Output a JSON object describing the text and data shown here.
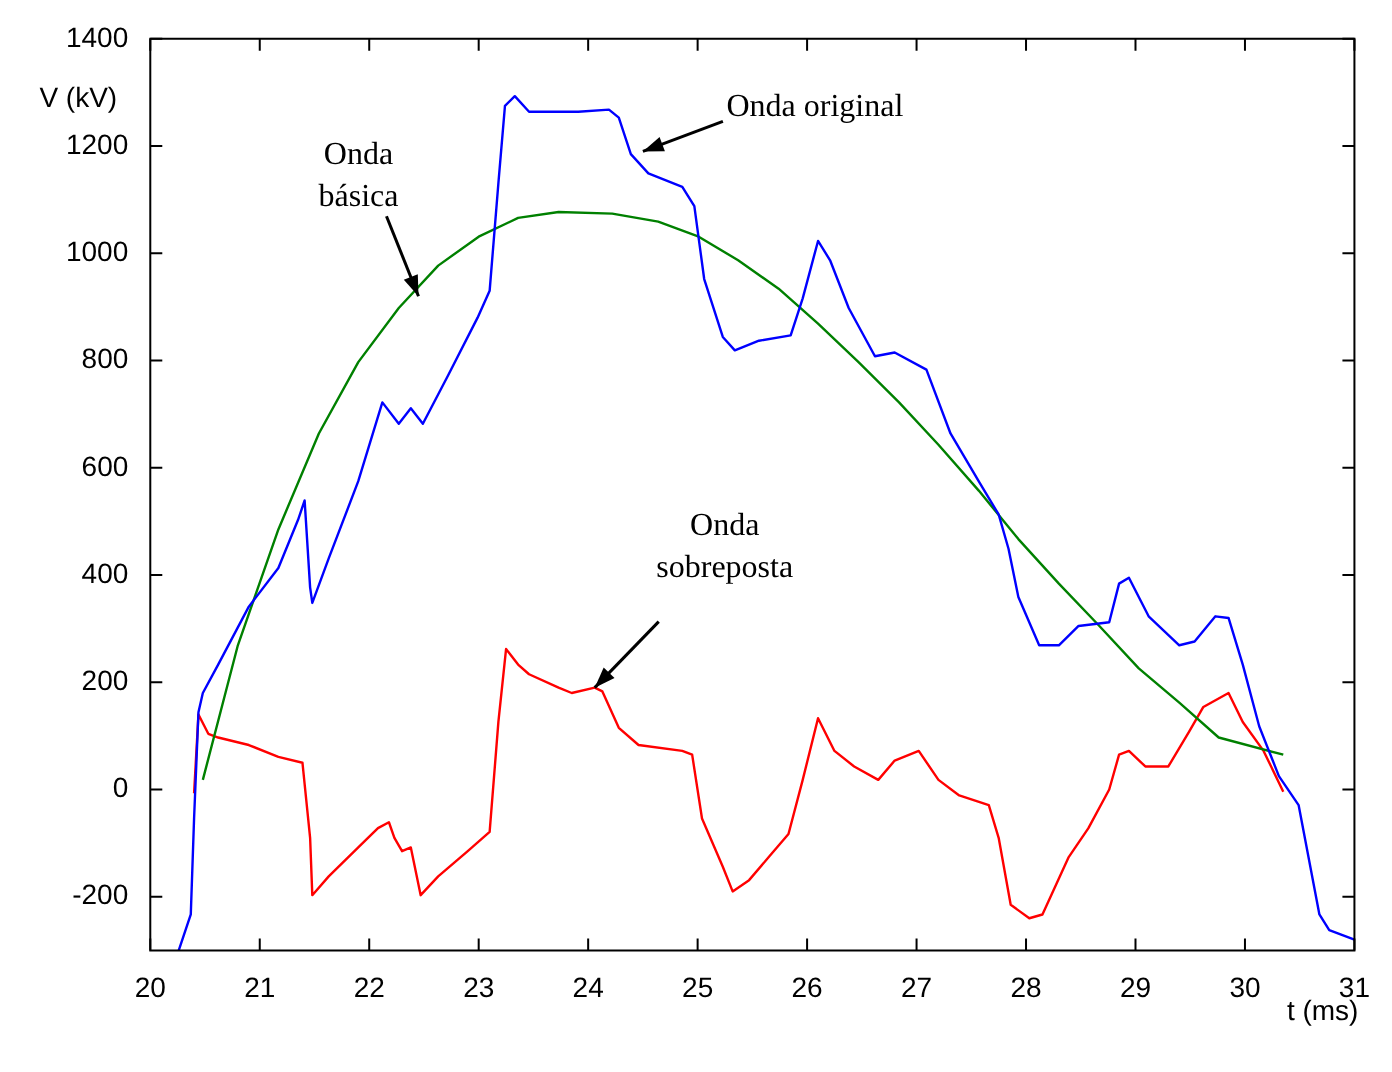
{
  "chart_data": {
    "type": "line",
    "xlabel": "t (ms)",
    "ylabel": "V (kV)",
    "xlim": [
      20,
      31
    ],
    "xticks": [
      20,
      21,
      22,
      23,
      24,
      25,
      26,
      27,
      28,
      29,
      30,
      31
    ],
    "ylim": [
      -300,
      1400
    ],
    "yticks": [
      -200,
      0,
      200,
      400,
      600,
      800,
      1000,
      1200,
      1400
    ],
    "grid": false,
    "legend": false,
    "marker": "none",
    "line_style": "solid",
    "series": [
      {
        "color": "#0000ff",
        "x": [
          20.26,
          20.37,
          20.4,
          20.44,
          20.48,
          20.62,
          20.9,
          21.17,
          21.35,
          21.41,
          21.46,
          21.48,
          21.63,
          21.9,
          22.12,
          22.27,
          22.38,
          22.49,
          22.72,
          22.99,
          23.1,
          23.18,
          23.24,
          23.33,
          23.46,
          23.91,
          24.19,
          24.28,
          24.39,
          24.55,
          24.86,
          24.97,
          25.06,
          25.23,
          25.34,
          25.56,
          25.85,
          25.96,
          26.1,
          26.21,
          26.38,
          26.62,
          26.8,
          27.09,
          27.31,
          27.57,
          27.75,
          27.84,
          27.93,
          28.12,
          28.3,
          28.48,
          28.76,
          28.85,
          28.94,
          29.12,
          29.4,
          29.54,
          29.73,
          29.85,
          29.98,
          30.13,
          30.31,
          30.49,
          30.68,
          30.77,
          31.0
        ],
        "values": [
          -300,
          -233,
          -54,
          144,
          180,
          233,
          341,
          413,
          503,
          539,
          377,
          348,
          431,
          575,
          722,
          682,
          711,
          682,
          772,
          880,
          930,
          1131,
          1275,
          1293,
          1264,
          1264,
          1268,
          1253,
          1185,
          1149,
          1124,
          1088,
          952,
          844,
          819,
          837,
          847,
          916,
          1023,
          987,
          898,
          808,
          815,
          783,
          664,
          574,
          513,
          449,
          359,
          269,
          269,
          305,
          312,
          384,
          395,
          323,
          269,
          276,
          323,
          320,
          233,
          118,
          25,
          -29,
          -233,
          -262,
          -280
        ]
      },
      {
        "color": "#008000",
        "x": [
          20.48,
          20.8,
          21.17,
          21.54,
          21.9,
          22.27,
          22.63,
          23.0,
          23.36,
          23.73,
          24.22,
          24.64,
          25.01,
          25.37,
          25.74,
          26.1,
          26.47,
          26.84,
          27.2,
          27.57,
          27.93,
          28.3,
          28.67,
          29.03,
          29.4,
          29.76,
          30.35
        ],
        "values": [
          18,
          269,
          485,
          664,
          797,
          898,
          977,
          1031,
          1066,
          1077,
          1074,
          1059,
          1031,
          987,
          934,
          869,
          797,
          722,
          643,
          557,
          467,
          384,
          305,
          226,
          162,
          97,
          65
        ]
      },
      {
        "color": "#ff0000",
        "x": [
          20.4,
          20.44,
          20.53,
          20.62,
          20.9,
          21.17,
          21.39,
          21.46,
          21.48,
          21.63,
          21.9,
          22.08,
          22.18,
          22.23,
          22.3,
          22.38,
          22.47,
          22.63,
          22.9,
          23.1,
          23.18,
          23.25,
          23.36,
          23.46,
          23.73,
          23.85,
          24.06,
          24.13,
          24.28,
          24.46,
          24.86,
          24.95,
          25.04,
          25.23,
          25.32,
          25.47,
          25.65,
          25.83,
          25.96,
          26.1,
          26.25,
          26.43,
          26.65,
          26.8,
          27.02,
          27.2,
          27.39,
          27.66,
          27.75,
          27.86,
          28.03,
          28.15,
          28.39,
          28.57,
          28.76,
          28.85,
          28.94,
          29.09,
          29.3,
          29.49,
          29.62,
          29.85,
          29.98,
          30.17,
          30.35
        ],
        "values": [
          -7,
          140,
          104,
          97,
          83,
          61,
          50,
          -90,
          -197,
          -162,
          -108,
          -72,
          -61,
          -90,
          -115,
          -108,
          -197,
          -162,
          -115,
          -79,
          126,
          262,
          233,
          215,
          190,
          180,
          190,
          183,
          115,
          83,
          72,
          65,
          -54,
          -144,
          -190,
          -169,
          -126,
          -83,
          18,
          133,
          72,
          43,
          18,
          54,
          72,
          18,
          -11,
          -29,
          -90,
          -215,
          -240,
          -233,
          -126,
          -72,
          0,
          65,
          72,
          43,
          43,
          108,
          154,
          180,
          126,
          72,
          -4
        ]
      }
    ],
    "annotations": [
      {
        "text": "Onda original",
        "x": 24.5,
        "y": 1190
      },
      {
        "text": "Onda básica",
        "x": 22.45,
        "y": 920
      },
      {
        "text": "Onda sobreposta",
        "x": 24.06,
        "y": 190
      }
    ]
  }
}
